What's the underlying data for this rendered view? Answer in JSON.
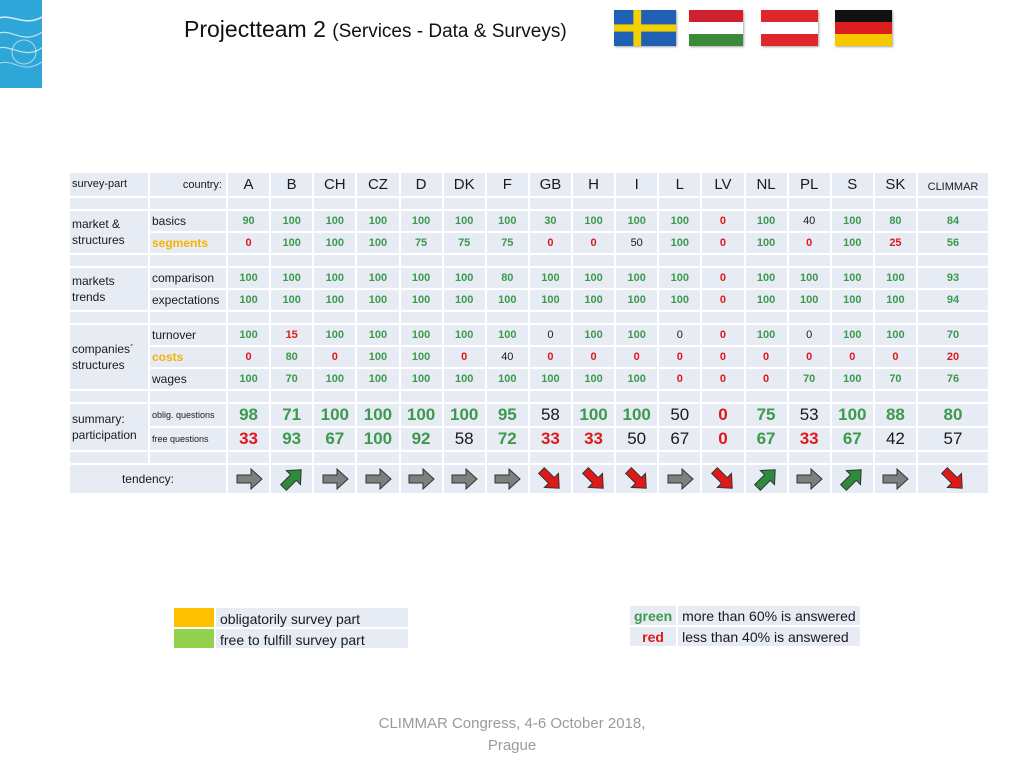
{
  "title": {
    "main": "Projectteam 2",
    "sub": "(Services - Data & Surveys)"
  },
  "flags": [
    "Sweden",
    "Hungary",
    "Austria",
    "Germany"
  ],
  "colors": {
    "green": "#3d9a4c",
    "red": "#e01818",
    "orange": "#f4b400",
    "cell_bg": "#e7ebf4",
    "swatch_orange": "#ffc000",
    "swatch_green": "#92d050"
  },
  "table": {
    "survey_part_label": "survey-part",
    "country_label": "country:",
    "countries": [
      "A",
      "B",
      "CH",
      "CZ",
      "D",
      "DK",
      "F",
      "GB",
      "H",
      "I",
      "L",
      "LV",
      "NL",
      "PL",
      "S",
      "SK",
      "CLIMMAR"
    ],
    "groups": {
      "market": "market & structures",
      "trends": "markets trends",
      "companies": "companies´ structures",
      "summary": "summary: participation"
    },
    "rows": {
      "basics": {
        "label": "basics",
        "values": [
          "90",
          "100",
          "100",
          "100",
          "100",
          "100",
          "100",
          "30",
          "100",
          "100",
          "100",
          "0",
          "100",
          "40",
          "100",
          "80",
          "84"
        ],
        "colors": [
          "g",
          "g",
          "g",
          "g",
          "g",
          "g",
          "g",
          "g",
          "g",
          "g",
          "g",
          "r",
          "g",
          "k",
          "g",
          "g",
          "g"
        ]
      },
      "segments": {
        "label": "segments",
        "values": [
          "0",
          "100",
          "100",
          "100",
          "75",
          "75",
          "75",
          "0",
          "0",
          "50",
          "100",
          "0",
          "100",
          "0",
          "100",
          "25",
          "56"
        ],
        "colors": [
          "r",
          "g",
          "g",
          "g",
          "g",
          "g",
          "g",
          "r",
          "r",
          "k",
          "g",
          "r",
          "g",
          "r",
          "g",
          "r",
          "g"
        ]
      },
      "comparison": {
        "label": "comparison",
        "values": [
          "100",
          "100",
          "100",
          "100",
          "100",
          "100",
          "80",
          "100",
          "100",
          "100",
          "100",
          "0",
          "100",
          "100",
          "100",
          "100",
          "93"
        ],
        "colors": [
          "g",
          "g",
          "g",
          "g",
          "g",
          "g",
          "g",
          "g",
          "g",
          "g",
          "g",
          "r",
          "g",
          "g",
          "g",
          "g",
          "g"
        ]
      },
      "expectations": {
        "label": "expectations",
        "values": [
          "100",
          "100",
          "100",
          "100",
          "100",
          "100",
          "100",
          "100",
          "100",
          "100",
          "100",
          "0",
          "100",
          "100",
          "100",
          "100",
          "94"
        ],
        "colors": [
          "g",
          "g",
          "g",
          "g",
          "g",
          "g",
          "g",
          "g",
          "g",
          "g",
          "g",
          "r",
          "g",
          "g",
          "g",
          "g",
          "g"
        ]
      },
      "turnover": {
        "label": "turnover",
        "values": [
          "100",
          "15",
          "100",
          "100",
          "100",
          "100",
          "100",
          "0",
          "100",
          "100",
          "0",
          "0",
          "100",
          "0",
          "100",
          "100",
          "70"
        ],
        "colors": [
          "g",
          "r",
          "g",
          "g",
          "g",
          "g",
          "g",
          "k",
          "g",
          "g",
          "k",
          "r",
          "g",
          "k",
          "g",
          "g",
          "g"
        ]
      },
      "costs": {
        "label": "costs",
        "values": [
          "0",
          "80",
          "0",
          "100",
          "100",
          "0",
          "40",
          "0",
          "0",
          "0",
          "0",
          "0",
          "0",
          "0",
          "0",
          "0",
          "20"
        ],
        "colors": [
          "r",
          "g",
          "r",
          "g",
          "g",
          "r",
          "k",
          "r",
          "r",
          "r",
          "r",
          "r",
          "r",
          "r",
          "r",
          "r",
          "r"
        ]
      },
      "wages": {
        "label": "wages",
        "values": [
          "100",
          "70",
          "100",
          "100",
          "100",
          "100",
          "100",
          "100",
          "100",
          "100",
          "0",
          "0",
          "0",
          "70",
          "100",
          "70",
          "76"
        ],
        "colors": [
          "g",
          "g",
          "g",
          "g",
          "g",
          "g",
          "g",
          "g",
          "g",
          "g",
          "r",
          "r",
          "r",
          "g",
          "g",
          "g",
          "g"
        ]
      },
      "oblig": {
        "label": "oblig. questions",
        "values": [
          "98",
          "71",
          "100",
          "100",
          "100",
          "100",
          "95",
          "58",
          "100",
          "100",
          "50",
          "0",
          "75",
          "53",
          "100",
          "88",
          "80"
        ],
        "colors": [
          "g",
          "g",
          "g",
          "g",
          "g",
          "g",
          "g",
          "k",
          "g",
          "g",
          "k",
          "r",
          "g",
          "k",
          "g",
          "g",
          "g"
        ]
      },
      "free": {
        "label": "free questions",
        "values": [
          "33",
          "93",
          "67",
          "100",
          "92",
          "58",
          "72",
          "33",
          "33",
          "50",
          "67",
          "0",
          "67",
          "33",
          "67",
          "42",
          "57"
        ],
        "colors": [
          "r",
          "g",
          "g",
          "g",
          "g",
          "k",
          "g",
          "r",
          "r",
          "k",
          "k",
          "r",
          "g",
          "r",
          "g",
          "k",
          "k"
        ]
      }
    },
    "tendency_label": "tendency:",
    "tendencies": [
      "right",
      "up",
      "right",
      "right",
      "right",
      "right",
      "right",
      "down",
      "down",
      "down",
      "right",
      "down",
      "up",
      "right",
      "up",
      "right",
      "down"
    ]
  },
  "legend_left": [
    {
      "swatch": "#ffc000",
      "text": "obligatorily survey part"
    },
    {
      "swatch": "#92d050",
      "text": "free to fulfill survey part"
    }
  ],
  "legend_right": [
    {
      "key": "green",
      "text": "more than 60% is answered"
    },
    {
      "key": "red",
      "text": "less than 40% is answered"
    }
  ],
  "footer": {
    "line1": "CLIMMAR Congress, 4-6 October 2018,",
    "line2": "Prague"
  }
}
